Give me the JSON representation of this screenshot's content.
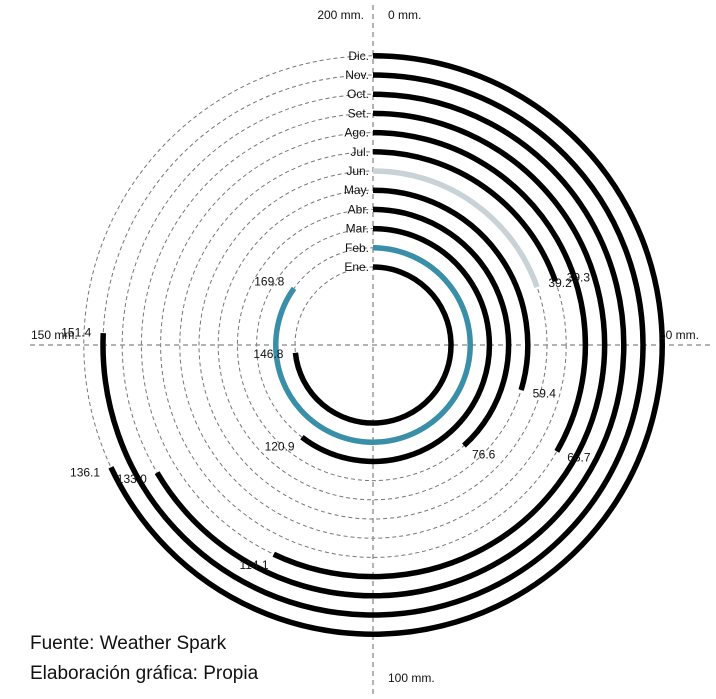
{
  "chart_data": {
    "type": "radial-bar",
    "title": "",
    "axis_labels": {
      "top_left": "200 mm.",
      "top_right": "0 mm.",
      "right": "50 mm.",
      "bottom": "100 mm.",
      "left": "150 mm."
    },
    "scale_max": 200,
    "categories": [
      "Ene.",
      "Feb.",
      "Mar.",
      "Abr.",
      "May.",
      "Jun.",
      "Jul.",
      "Ago.",
      "Set.",
      "Oct.",
      "Nov.",
      "Dic."
    ],
    "values": [
      146.8,
      169.8,
      120.9,
      76.6,
      59.4,
      39.2,
      39.3,
      66.7,
      114.1,
      133.0,
      151.4,
      136.1
    ],
    "value_labels": [
      "146.8",
      "169.8",
      "120.9",
      "76.6",
      "59.4",
      "39.2",
      "39.3",
      "66.7",
      "114.1",
      "133.0",
      "151.4",
      "136.1"
    ],
    "colors": {
      "default": "#000000",
      "max": "#3a8fa8",
      "min": "#c9d2d6",
      "guide": "#777777",
      "axis": "#888888"
    },
    "highlight_max_index": 1,
    "highlight_min_index": 5
  },
  "footer": {
    "source": "Fuente: Weather Spark",
    "credit": "Elaboración gráfica: Propia"
  }
}
